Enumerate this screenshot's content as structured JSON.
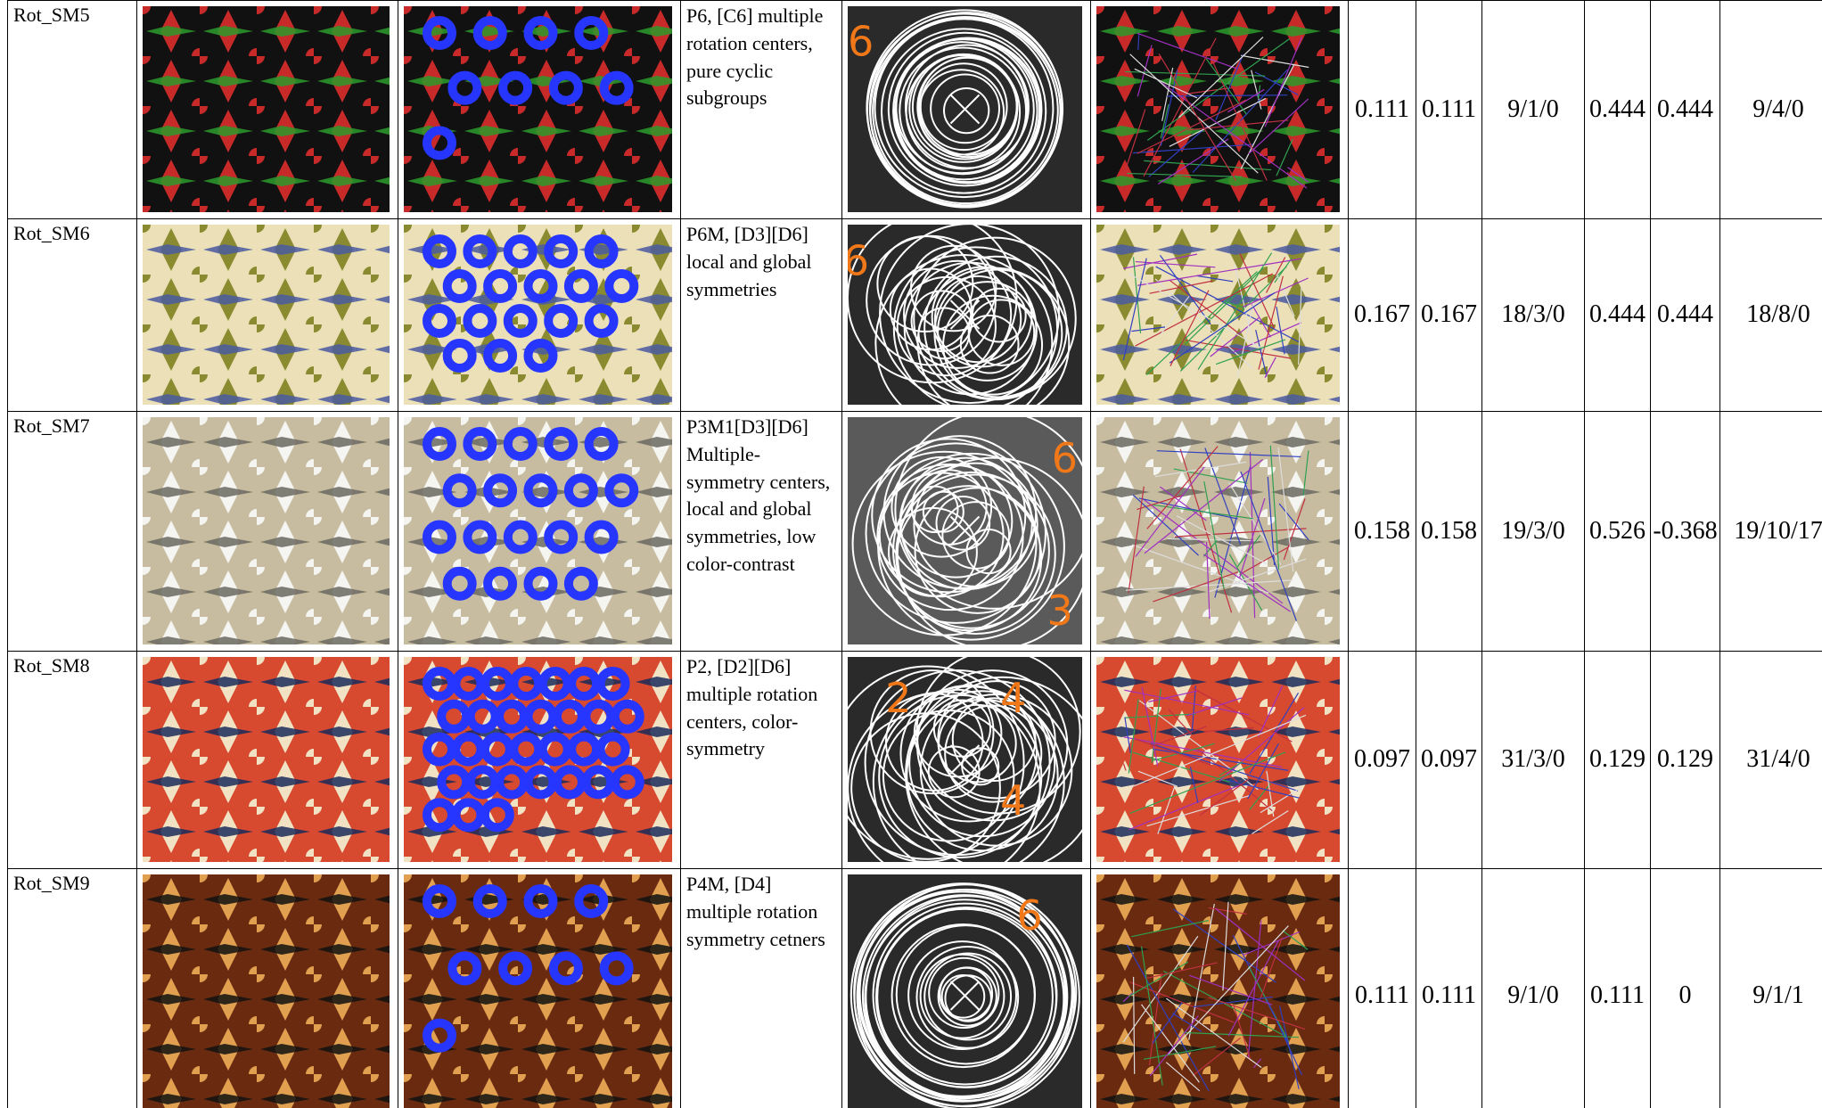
{
  "table": {
    "rows": [
      {
        "label": "Rot_SM5",
        "description": "P6, [C6] multiple rotation centers, pure cyclic subgroups",
        "overlay_digits": [
          "6"
        ],
        "values": [
          "0.111",
          "0.111",
          "9/1/0",
          "0.444",
          "0.444",
          "9/4/0"
        ]
      },
      {
        "label": "Rot_SM6",
        "description": "P6M, [D3][D6] local and global symmetries",
        "overlay_digits": [
          "6"
        ],
        "values": [
          "0.167",
          "0.167",
          "18/3/0",
          "0.444",
          "0.444",
          "18/8/0"
        ]
      },
      {
        "label": "Rot_SM7",
        "description": "P3M1[D3][D6] Multiple-symmetry centers, local and global symmetries, low color-contrast",
        "overlay_digits": [
          "6",
          "3"
        ],
        "values": [
          "0.158",
          "0.158",
          "19/3/0",
          "0.526",
          "-0.368",
          "19/10/17"
        ]
      },
      {
        "label": "Rot_SM8",
        "description": "P2, [D2][D6] multiple rotation centers, color-symmetry",
        "overlay_digits": [
          "2",
          "4",
          "4"
        ],
        "values": [
          "0.097",
          "0.097",
          "31/3/0",
          "0.129",
          "0.129",
          "31/4/0"
        ]
      },
      {
        "label": "Rot_SM9",
        "description": "P4M, [D4] multiple rotation symmetry cetners",
        "overlay_digits": [
          "6"
        ],
        "values": [
          "0.111",
          "0.111",
          "9/1/0",
          "0.111",
          "0",
          "9/1/1"
        ]
      }
    ]
  }
}
